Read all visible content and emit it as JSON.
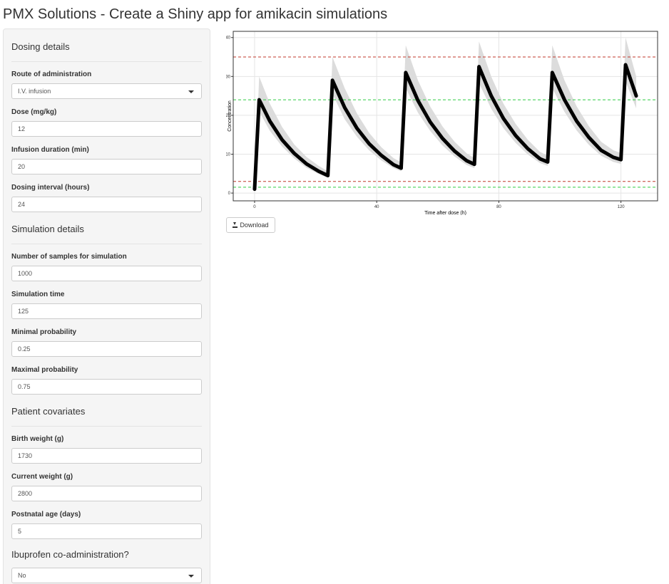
{
  "header": {
    "title": "PMX Solutions - Create a Shiny app for amikacin simulations"
  },
  "sidebar": {
    "sections": [
      {
        "title": "Dosing details",
        "fields": [
          {
            "label": "Route of administration",
            "select": "I.V. infusion"
          },
          {
            "label": "Dose (mg/kg)",
            "input": "12"
          },
          {
            "label": "Infusion duration (min)",
            "input": "20"
          },
          {
            "label": "Dosing interval (hours)",
            "input": "24"
          }
        ]
      },
      {
        "title": "Simulation details",
        "fields": [
          {
            "label": "Number of samples for simulation",
            "input": "1000"
          },
          {
            "label": "Simulation time",
            "input": "125"
          },
          {
            "label": "Minimal probability",
            "input": "0.25"
          },
          {
            "label": "Maximal probability",
            "input": "0.75"
          }
        ]
      },
      {
        "title": "Patient covariates",
        "fields": [
          {
            "label": "Birth weight (g)",
            "input": "1730"
          },
          {
            "label": "Current weight (g)",
            "input": "2800"
          },
          {
            "label": "Postnatal age (days)",
            "input": "5"
          }
        ]
      },
      {
        "title": "Ibuprofen co-administration?",
        "fields": [
          {
            "select": "No"
          }
        ]
      }
    ]
  },
  "button": "Download",
  "chart_data": {
    "type": "line",
    "x_label": "Time after dose (h)",
    "y_label": "Concentration",
    "x": [
      0,
      1.5,
      5,
      9,
      13,
      17,
      21,
      24,
      25.5,
      29.5,
      33.5,
      37.5,
      41.5,
      45.5,
      48,
      49.5,
      53.5,
      57.5,
      61.5,
      65.5,
      69.5,
      72,
      73.5,
      77.5,
      81.5,
      85.5,
      89.5,
      93.5,
      96,
      97.5,
      101.5,
      105.5,
      109.5,
      113.5,
      117.5,
      120,
      121.5,
      125
    ],
    "series": [
      {
        "color": "#000000",
        "values": [
          1,
          24,
          18.5,
          13.7,
          10.2,
          7.5,
          5.6,
          4.5,
          29,
          22,
          16.7,
          12.7,
          9.7,
          7.3,
          6.4,
          31,
          23.8,
          18.3,
          14.1,
          10.8,
          8.3,
          7.4,
          32.5,
          25,
          19.2,
          14.8,
          11.4,
          8.8,
          8,
          31,
          24,
          18.5,
          14.3,
          11,
          9.2,
          8.6,
          33,
          25
        ]
      }
    ],
    "band": {
      "color": "#dcdcdc",
      "lower": [
        0.8,
        21,
        16,
        12,
        8.9,
        6.5,
        4.9,
        3.9,
        25.5,
        19,
        14.5,
        11,
        8.4,
        6.4,
        5.6,
        27,
        20.7,
        16,
        12.3,
        9.4,
        7.2,
        6.4,
        28.3,
        21.7,
        16.7,
        12.9,
        9.9,
        7.7,
        7,
        27,
        20.9,
        16.1,
        12.4,
        9.6,
        8,
        7.5,
        28.7,
        21.8
      ],
      "upper": [
        1.5,
        30,
        23,
        17,
        12.5,
        9.3,
        7,
        5.6,
        35,
        27,
        20.5,
        15.5,
        11.8,
        9,
        7.9,
        38,
        29,
        22.3,
        17.2,
        13.2,
        10.2,
        9,
        39,
        30,
        23,
        17.8,
        13.7,
        10.6,
        9.6,
        38,
        29,
        22.3,
        17.2,
        13.2,
        11,
        10.3,
        40,
        30
      ]
    },
    "hlines": [
      {
        "value": 35,
        "color": "#c0392b"
      },
      {
        "value": 24,
        "color": "#2ecc40"
      },
      {
        "value": 3,
        "color": "#c0392b"
      },
      {
        "value": 1.5,
        "color": "#2ecc40"
      }
    ],
    "xlim": [
      -7,
      132
    ],
    "ylim": [
      -2,
      41.6
    ],
    "xticks": [
      0,
      40,
      80,
      120
    ],
    "yticks": [
      0,
      10,
      20,
      30,
      40
    ],
    "grid": true
  }
}
